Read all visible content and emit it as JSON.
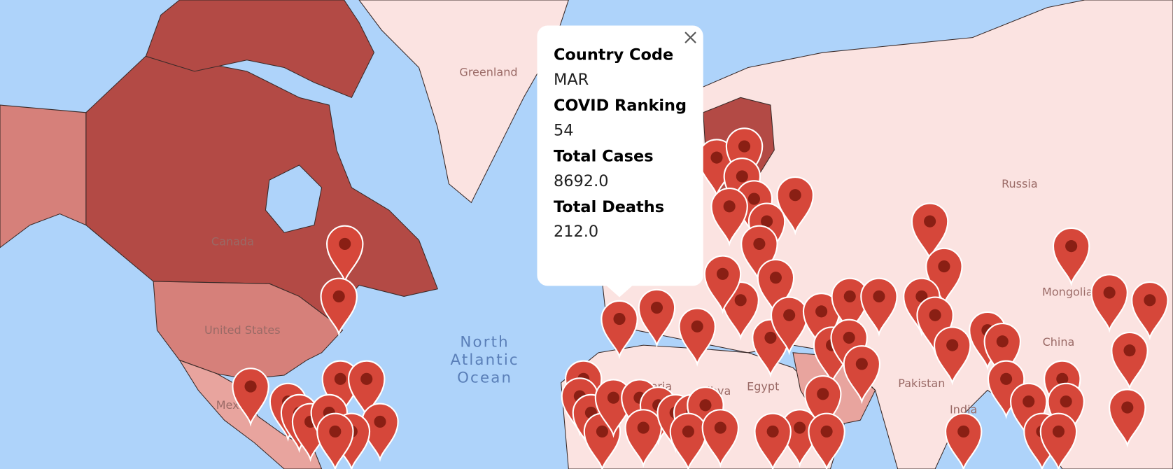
{
  "map_labels": [
    "Greenland",
    "Canada",
    "United States",
    "Russia",
    "Mongolia",
    "China",
    "India",
    "Algeria",
    "Libya",
    "Egypt",
    "Mexico",
    "Pakistan"
  ],
  "ocean_label": [
    "North",
    "Atlantic",
    "Ocean"
  ],
  "info_window": {
    "fields": [
      {
        "label": "Country Code",
        "value": "MAR"
      },
      {
        "label": "COVID Ranking",
        "value": "54"
      },
      {
        "label": "Total Cases",
        "value": "8692.0"
      },
      {
        "label": "Total Deaths",
        "value": "212.0"
      }
    ]
  }
}
